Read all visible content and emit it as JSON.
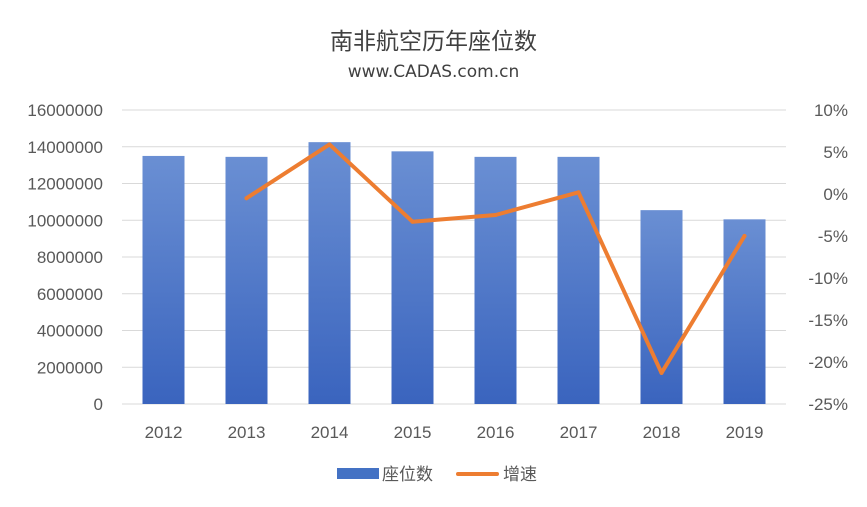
{
  "chart_data": {
    "type": "bar+line",
    "title": "南非航空历年座位数",
    "subtitle": "www.CADAS.com.cn",
    "categories": [
      "2012",
      "2013",
      "2014",
      "2015",
      "2016",
      "2017",
      "2018",
      "2019"
    ],
    "series": [
      {
        "name": "座位数",
        "type": "bar",
        "axis": "left",
        "color": "#4472c4",
        "values": [
          13500000,
          13450000,
          14250000,
          13750000,
          13450000,
          13450000,
          10550000,
          10050000
        ]
      },
      {
        "name": "增速",
        "type": "line",
        "axis": "right",
        "color": "#ed7d31",
        "values": [
          null,
          -0.5,
          5.9,
          -3.3,
          -2.5,
          0.2,
          -21.3,
          -5.0
        ]
      }
    ],
    "y_left": {
      "ylim": [
        0,
        16000000
      ],
      "ticks": [
        "16000000",
        "14000000",
        "12000000",
        "10000000",
        "8000000",
        "6000000",
        "4000000",
        "2000000",
        "0"
      ]
    },
    "y_right": {
      "ylim": [
        -25,
        10
      ],
      "unit": "%",
      "ticks": [
        "10%",
        "5%",
        "0%",
        "-5%",
        "-10%",
        "-15%",
        "-20%",
        "-25%"
      ]
    },
    "grid": true,
    "legend": {
      "position": "bottom",
      "items": [
        {
          "label": "座位数",
          "marker": "bar",
          "color": "#4472c4"
        },
        {
          "label": "增速",
          "marker": "line",
          "color": "#ed7d31"
        }
      ]
    }
  }
}
